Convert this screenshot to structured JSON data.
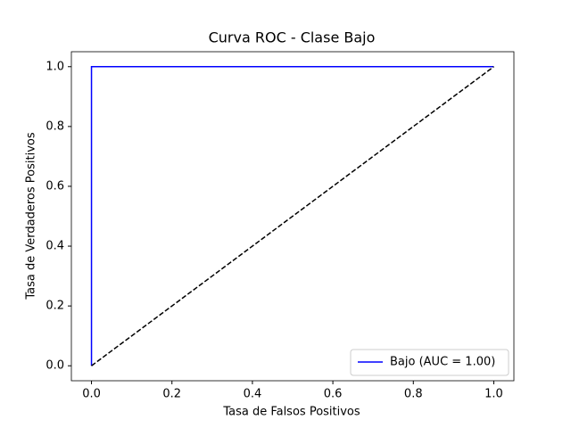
{
  "chart_data": {
    "type": "line",
    "title": "Curva ROC - Clase Bajo",
    "xlabel": "Tasa de Falsos Positivos",
    "ylabel": "Tasa de Verdaderos Positivos",
    "series": [
      {
        "name": "Bajo (AUC = 1.00)",
        "color": "#0000ff",
        "x": [
          0,
          0,
          1
        ],
        "values": [
          0,
          1,
          1
        ],
        "dash": false
      },
      {
        "color": "#000000",
        "x": [
          0,
          1
        ],
        "values": [
          0,
          1
        ],
        "dash": true
      }
    ],
    "xlim": [
      -0.05,
      1.05
    ],
    "ylim": [
      -0.05,
      1.05
    ],
    "xticks": [
      {
        "value": 0,
        "label": "0.0"
      },
      {
        "value": 0.2,
        "label": "0.2"
      },
      {
        "value": 0.4,
        "label": "0.4"
      },
      {
        "value": 0.6,
        "label": "0.6"
      },
      {
        "value": 0.8,
        "label": "0.8"
      },
      {
        "value": 1,
        "label": "1.0"
      }
    ],
    "yticks": [
      {
        "value": 0,
        "label": "0.0"
      },
      {
        "value": 0.2,
        "label": "0.2"
      },
      {
        "value": 0.4,
        "label": "0.4"
      },
      {
        "value": 0.6,
        "label": "0.6"
      },
      {
        "value": 0.8,
        "label": "0.8"
      },
      {
        "value": 1,
        "label": "1.0"
      }
    ],
    "legend": "lower right",
    "grid": false
  }
}
